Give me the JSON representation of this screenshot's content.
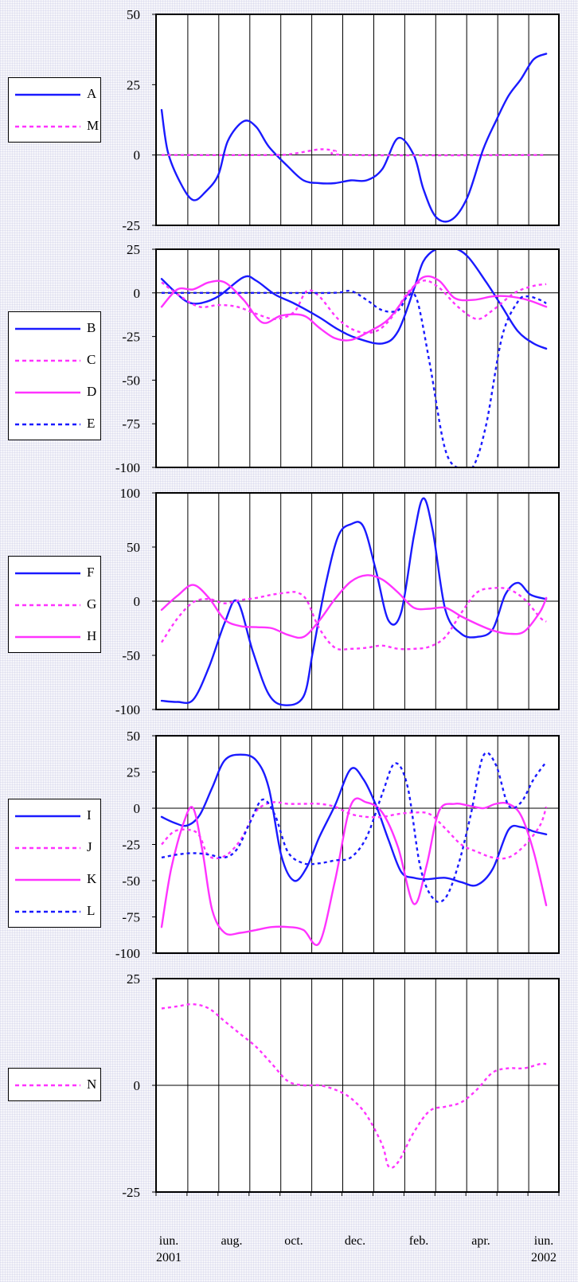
{
  "x_axis": {
    "ticks": [
      {
        "month": 0,
        "line1": "iun.",
        "line2": "2001"
      },
      {
        "month": 2,
        "line1": "aug.",
        "line2": ""
      },
      {
        "month": 4,
        "line1": "oct.",
        "line2": ""
      },
      {
        "month": 6,
        "line1": "dec.",
        "line2": ""
      },
      {
        "month": 8,
        "line1": "feb.",
        "line2": ""
      },
      {
        "month": 10,
        "line1": "apr.",
        "line2": ""
      },
      {
        "month": 12,
        "line1": "iun.",
        "line2": "2002"
      }
    ]
  },
  "chart_data": [
    {
      "type": "line",
      "ylim": [
        -25,
        50
      ],
      "yticks": [
        -25,
        0,
        25,
        50
      ],
      "series": [
        {
          "name": "A",
          "color": "#1a1aff",
          "dashed": false,
          "x": [
            0,
            0.2,
            0.6,
            1,
            1.4,
            1.8,
            2.1,
            2.6,
            3,
            3.4,
            4,
            4.5,
            5,
            5.5,
            6,
            6.5,
            7,
            7.5,
            8,
            8.3,
            8.7,
            9.2,
            9.7,
            10.2,
            10.6,
            11,
            11.4,
            11.8,
            12.2
          ],
          "y": [
            16,
            1,
            -10,
            -16,
            -13,
            -7,
            5,
            12,
            10,
            3,
            -4,
            -9,
            -10,
            -10,
            -9,
            -9,
            -5,
            6,
            0,
            -12,
            -22,
            -23,
            -15,
            2,
            12,
            21,
            27,
            34,
            36
          ]
        },
        {
          "name": "M",
          "color": "#ff33ff",
          "dashed": true,
          "x": [
            0,
            3.5,
            4.2,
            5,
            5.5,
            6,
            12.2
          ],
          "y": [
            0,
            0,
            0.5,
            2,
            1.5,
            0,
            0
          ]
        }
      ]
    },
    {
      "type": "line",
      "ylim": [
        -100,
        25
      ],
      "yticks": [
        -100,
        -75,
        -50,
        -25,
        0,
        25
      ],
      "series": [
        {
          "name": "B",
          "color": "#1a1aff",
          "dashed": false,
          "x": [
            0,
            0.4,
            0.8,
            1.2,
            1.8,
            2.6,
            3,
            3.6,
            4.2,
            5,
            5.6,
            6.2,
            7,
            7.5,
            8,
            8.3,
            8.7,
            9.2,
            9.7,
            10.3,
            10.8,
            11.3,
            11.8,
            12.2
          ],
          "y": [
            8,
            1,
            -5,
            -6,
            -2,
            9,
            7,
            -1,
            -6,
            -14,
            -21,
            -26,
            -29,
            -22,
            2,
            18,
            25,
            26,
            21,
            6,
            -8,
            -22,
            -29,
            -32
          ]
        },
        {
          "name": "C",
          "color": "#ff33ff",
          "dashed": true,
          "x": [
            0,
            0.6,
            1.2,
            1.8,
            2.4,
            3,
            3.6,
            4.2,
            4.6,
            5,
            5.6,
            6.2,
            6.8,
            7.3,
            7.8,
            8.3,
            8.8,
            9.4,
            10,
            10.5,
            11.2,
            11.8,
            12.2
          ],
          "y": [
            6,
            -2,
            -8,
            -7,
            -8,
            -12,
            -15,
            -11,
            1,
            -2,
            -15,
            -22,
            -22,
            -14,
            0,
            7,
            3,
            -8,
            -15,
            -10,
            0,
            4,
            5
          ]
        },
        {
          "name": "D",
          "color": "#ff33ff",
          "dashed": false,
          "x": [
            0,
            0.5,
            1,
            1.5,
            2,
            2.6,
            3.2,
            3.8,
            4.5,
            5,
            5.5,
            6,
            6.6,
            7.2,
            7.8,
            8.3,
            8.8,
            9.3,
            9.9,
            10.5,
            11,
            11.6,
            12.2
          ],
          "y": [
            -8,
            2,
            2,
            6,
            6,
            -4,
            -17,
            -13,
            -13,
            -20,
            -26,
            -27,
            -22,
            -15,
            -1,
            9,
            7,
            -3,
            -4,
            -2,
            -2,
            -4,
            -8
          ]
        },
        {
          "name": "E",
          "color": "#1a1aff",
          "dashed": true,
          "x": [
            0,
            3,
            5.4,
            6,
            6.5,
            7,
            7.5,
            7.8,
            8.1,
            8.5,
            9,
            9.5,
            9.9,
            10.3,
            10.8,
            11.3,
            11.6,
            12,
            12.2
          ],
          "y": [
            0,
            0,
            0,
            1,
            -4,
            -10,
            -10,
            -2,
            -4,
            -40,
            -90,
            -101,
            -99,
            -75,
            -25,
            -5,
            -2,
            -4,
            -6
          ]
        }
      ]
    },
    {
      "type": "line",
      "ylim": [
        -100,
        100
      ],
      "yticks": [
        -100,
        -50,
        0,
        50,
        100
      ],
      "series": [
        {
          "name": "F",
          "color": "#1a1aff",
          "dashed": false,
          "x": [
            0,
            0.5,
            1,
            1.5,
            2,
            2.4,
            2.9,
            3.4,
            3.9,
            4.5,
            4.8,
            5.2,
            5.6,
            6,
            6.4,
            6.8,
            7.2,
            7.6,
            8,
            8.3,
            8.6,
            9,
            9.5,
            10,
            10.5,
            10.9,
            11.3,
            11.7,
            12.2
          ],
          "y": [
            -92,
            -93,
            -91,
            -61,
            -20,
            0,
            -47,
            -86,
            -96,
            -88,
            -46,
            15,
            60,
            71,
            69,
            28,
            -18,
            -10,
            60,
            95,
            65,
            -8,
            -30,
            -33,
            -26,
            6,
            17,
            6,
            2
          ]
        },
        {
          "name": "G",
          "color": "#ff33ff",
          "dashed": true,
          "x": [
            0,
            0.5,
            1,
            1.5,
            2,
            2.5,
            3,
            3.5,
            4,
            4.3,
            4.6,
            5,
            5.5,
            6,
            6.5,
            7,
            7.5,
            8,
            8.5,
            9,
            9.5,
            10,
            10.5,
            11,
            11.5,
            12,
            12.2
          ],
          "y": [
            -38,
            -16,
            -1,
            2,
            -2,
            1,
            3,
            6,
            8,
            8,
            1,
            -25,
            -43,
            -44,
            -43,
            -41,
            -44,
            -44,
            -42,
            -33,
            -11,
            8,
            12,
            11,
            2,
            -15,
            -19
          ]
        },
        {
          "name": "H",
          "color": "#ff33ff",
          "dashed": false,
          "x": [
            0,
            0.5,
            1,
            1.5,
            2,
            2.5,
            3,
            3.5,
            4,
            4.5,
            5,
            5.5,
            6,
            6.5,
            7,
            7.5,
            8,
            8.5,
            9,
            9.5,
            10,
            10.5,
            11,
            11.5,
            12,
            12.2
          ],
          "y": [
            -8,
            5,
            15,
            3,
            -17,
            -23,
            -24,
            -25,
            -31,
            -33,
            -18,
            2,
            18,
            24,
            20,
            8,
            -6,
            -7,
            -6,
            -14,
            -21,
            -27,
            -30,
            -28,
            -10,
            3
          ]
        }
      ]
    },
    {
      "type": "line",
      "ylim": [
        -100,
        50
      ],
      "yticks": [
        -100,
        -75,
        -50,
        -25,
        0,
        25,
        50
      ],
      "series": [
        {
          "name": "I",
          "color": "#1a1aff",
          "dashed": false,
          "x": [
            0,
            0.4,
            0.8,
            1.2,
            1.6,
            2,
            2.5,
            3,
            3.4,
            3.8,
            4.2,
            4.6,
            5,
            5.5,
            6,
            6.4,
            6.8,
            7.2,
            7.6,
            8,
            8.4,
            9,
            9.5,
            10,
            10.5,
            11,
            11.4,
            11.8,
            12.2
          ],
          "y": [
            -6,
            -10,
            -12,
            -5,
            14,
            33,
            37,
            33,
            14,
            -33,
            -50,
            -41,
            -20,
            2,
            27,
            20,
            2,
            -22,
            -44,
            -48,
            -49,
            -48,
            -51,
            -53,
            -42,
            -15,
            -13,
            -16,
            -18
          ]
        },
        {
          "name": "J",
          "color": "#ff33ff",
          "dashed": true,
          "x": [
            0,
            0.4,
            0.9,
            1.2,
            1.5,
            2,
            2.5,
            3,
            3.5,
            4,
            4.5,
            5,
            5.5,
            6,
            6.5,
            7,
            7.5,
            8,
            8.5,
            9,
            9.5,
            10,
            10.5,
            11,
            11.5,
            12,
            12.2
          ],
          "y": [
            -25,
            -16,
            -15,
            -19,
            -33,
            -33,
            -22,
            -2,
            4,
            3,
            3,
            3,
            1,
            -4,
            -6,
            -6,
            -4,
            -3,
            -4,
            -14,
            -25,
            -30,
            -34,
            -34,
            -26,
            -12,
            1
          ]
        },
        {
          "name": "K",
          "color": "#ff33ff",
          "dashed": false,
          "x": [
            0,
            0.3,
            0.7,
            1,
            1.3,
            1.6,
            2,
            2.5,
            3,
            3.5,
            4,
            4.5,
            5,
            5.5,
            6,
            6.5,
            7,
            7.5,
            8,
            8.4,
            8.8,
            9.3,
            9.7,
            10.2,
            10.6,
            11,
            11.4,
            11.8,
            12.2
          ],
          "y": [
            -82,
            -42,
            -10,
            0,
            -30,
            -70,
            -86,
            -86,
            -84,
            -82,
            -82,
            -84,
            -93,
            -50,
            2,
            4,
            -3,
            -27,
            -66,
            -40,
            -2,
            3,
            2,
            0,
            3,
            3,
            -5,
            -30,
            -67
          ]
        },
        {
          "name": "L",
          "color": "#1a1aff",
          "dashed": true,
          "x": [
            0,
            0.5,
            1,
            1.5,
            2,
            2.4,
            2.8,
            3.2,
            3.6,
            4,
            4.5,
            5,
            5.5,
            6,
            6.5,
            7,
            7.4,
            7.8,
            8.2,
            8.6,
            9,
            9.4,
            9.8,
            10.2,
            10.6,
            11,
            11.4,
            11.8,
            12.2
          ],
          "y": [
            -34,
            -32,
            -31,
            -32,
            -34,
            -28,
            -10,
            6,
            -5,
            -30,
            -38,
            -38,
            -36,
            -34,
            -20,
            10,
            31,
            15,
            -40,
            -62,
            -62,
            -40,
            -5,
            36,
            30,
            2,
            4,
            20,
            32
          ]
        }
      ]
    },
    {
      "type": "line",
      "ylim": [
        -25,
        25
      ],
      "yticks": [
        -25,
        0,
        25
      ],
      "series": [
        {
          "name": "N",
          "color": "#ff33ff",
          "dashed": true,
          "x": [
            0,
            0.5,
            1,
            1.5,
            2,
            2.5,
            3,
            3.5,
            4,
            4.5,
            5,
            5.5,
            6,
            6.5,
            7,
            7.2,
            7.5,
            8,
            8.5,
            9,
            9.5,
            10,
            10.5,
            11,
            11.5,
            12,
            12.2
          ],
          "y": [
            18,
            18.5,
            19,
            18,
            15,
            12,
            9,
            5,
            1,
            0,
            0,
            -1,
            -3,
            -7,
            -14,
            -19,
            -18,
            -11,
            -6,
            -5,
            -4,
            -1,
            3,
            4,
            4,
            5,
            5
          ]
        }
      ]
    }
  ]
}
